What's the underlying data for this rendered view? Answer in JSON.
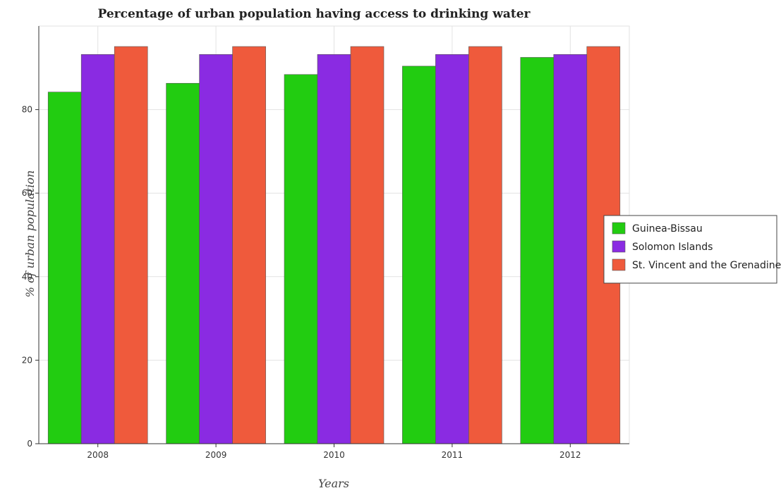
{
  "chart_data": {
    "type": "bar",
    "title": "Percentage of urban population having access to drinking water",
    "xlabel": "Years",
    "ylabel": "% of urban population",
    "categories": [
      "2008",
      "2009",
      "2010",
      "2011",
      "2012"
    ],
    "ylim": [
      0,
      100
    ],
    "yticks": [
      0,
      20,
      40,
      60,
      80
    ],
    "grid": true,
    "legend_position": "right",
    "series": [
      {
        "name": "Guinea-Bissau",
        "color": "#22cc11",
        "values": [
          84.2,
          86.3,
          88.4,
          90.4,
          92.5
        ]
      },
      {
        "name": "Solomon Islands",
        "color": "#8a2be2",
        "values": [
          93.2,
          93.2,
          93.2,
          93.2,
          93.2
        ]
      },
      {
        "name": "St. Vincent and the Grenadines",
        "color": "#ef5a3c",
        "values": [
          95.1,
          95.1,
          95.1,
          95.1,
          95.1
        ]
      }
    ]
  }
}
